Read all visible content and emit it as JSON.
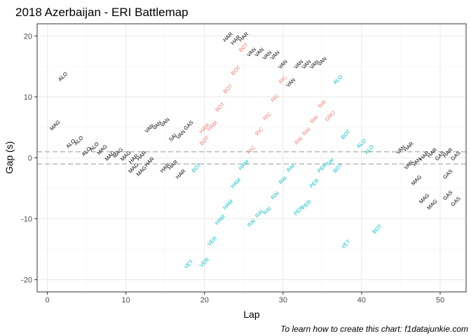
{
  "chart_data": {
    "type": "scatter",
    "title": "2018 Azerbaijan - ERI Battlemap",
    "xlabel": "Lap",
    "ylabel": "Gap (s)",
    "caption": "To learn how to create this chart: f1datajunkie.com",
    "xlim": [
      -1.3,
      53.3
    ],
    "ylim": [
      -22,
      22
    ],
    "x_ticks": [
      0,
      10,
      20,
      30,
      40,
      50
    ],
    "y_ticks": [
      -20,
      -10,
      0,
      10,
      20
    ],
    "reference_lines_y": [
      1,
      -1
    ],
    "grid": true,
    "colors": {
      "ahead": "#F8766D",
      "behind": "#00BFC4",
      "other": "#000000",
      "refline": "#b3b3b3"
    },
    "series": [
      {
        "name": "ahead",
        "points": [
          {
            "x": 20,
            "y": 2.8,
            "label": "BOT"
          },
          {
            "x": 20,
            "y": 4.8,
            "label": "HAM"
          },
          {
            "x": 21,
            "y": 5.2,
            "label": "HAM"
          },
          {
            "x": 22,
            "y": 8.3,
            "label": "BOT"
          },
          {
            "x": 23,
            "y": 11.3,
            "label": "BOT"
          },
          {
            "x": 24,
            "y": 14.3,
            "label": "BOT"
          },
          {
            "x": 25,
            "y": 18.1,
            "label": "BOT"
          },
          {
            "x": 26,
            "y": 1.3,
            "label": "RIC"
          },
          {
            "x": 27,
            "y": 4.3,
            "label": "RIC"
          },
          {
            "x": 28,
            "y": 6.8,
            "label": "RIC"
          },
          {
            "x": 29,
            "y": 9.8,
            "label": "RIC"
          },
          {
            "x": 30,
            "y": 12.8,
            "label": "RIC"
          },
          {
            "x": 32,
            "y": 2.8,
            "label": "RAI"
          },
          {
            "x": 33,
            "y": 4.3,
            "label": "RAI"
          },
          {
            "x": 34,
            "y": 6.3,
            "label": "RAI"
          },
          {
            "x": 35,
            "y": 8.8,
            "label": "RAI"
          },
          {
            "x": 36,
            "y": 6.8,
            "label": "GRO"
          }
        ]
      },
      {
        "name": "behind",
        "points": [
          {
            "x": 18,
            "y": -17.5,
            "label": "VET"
          },
          {
            "x": 20,
            "y": -17.2,
            "label": "VER"
          },
          {
            "x": 21,
            "y": -13.7,
            "label": "VER"
          },
          {
            "x": 22,
            "y": -10.2,
            "label": "HAM"
          },
          {
            "x": 23,
            "y": -7.7,
            "label": "HAM"
          },
          {
            "x": 24,
            "y": -4.2,
            "label": "HAM"
          },
          {
            "x": 25,
            "y": -1.2,
            "label": "HAM"
          },
          {
            "x": 19,
            "y": -1.7,
            "label": "BOT"
          },
          {
            "x": 26,
            "y": -10.7,
            "label": "RAI"
          },
          {
            "x": 27,
            "y": -9.2,
            "label": "RAI"
          },
          {
            "x": 28,
            "y": -8.7,
            "label": "RAI"
          },
          {
            "x": 29,
            "y": -6.2,
            "label": "RAI"
          },
          {
            "x": 30,
            "y": -3.7,
            "label": "RAI"
          },
          {
            "x": 31,
            "y": -1.7,
            "label": "RAI"
          },
          {
            "x": 32,
            "y": -8.7,
            "label": "PER"
          },
          {
            "x": 33,
            "y": -7.7,
            "label": "PER"
          },
          {
            "x": 34,
            "y": -4.2,
            "label": "PER"
          },
          {
            "x": 35,
            "y": -1.7,
            "label": "PER"
          },
          {
            "x": 36,
            "y": -0.7,
            "label": "SAI"
          },
          {
            "x": 37,
            "y": -1.7,
            "label": "BOT"
          },
          {
            "x": 38,
            "y": 3.8,
            "label": "BOT"
          },
          {
            "x": 37,
            "y": 12.8,
            "label": "ALO"
          },
          {
            "x": 40,
            "y": 2.3,
            "label": "ALO"
          },
          {
            "x": 41,
            "y": 1.3,
            "label": "ALO"
          },
          {
            "x": 38,
            "y": -14.2,
            "label": "VET"
          },
          {
            "x": 42,
            "y": -11.7,
            "label": "BOT"
          }
        ]
      },
      {
        "name": "other",
        "points": [
          {
            "x": 2,
            "y": 13.3,
            "label": "ALO"
          },
          {
            "x": 1,
            "y": 5.3,
            "label": "MAG"
          },
          {
            "x": 3,
            "y": 2.3,
            "label": "ALO"
          },
          {
            "x": 4,
            "y": 2.8,
            "label": "ALO"
          },
          {
            "x": 5,
            "y": 1.0,
            "label": "ALO"
          },
          {
            "x": 6,
            "y": 1.8,
            "label": "ALO"
          },
          {
            "x": 7,
            "y": 1.3,
            "label": "MAG"
          },
          {
            "x": 8,
            "y": 0.3,
            "label": "MAG"
          },
          {
            "x": 9,
            "y": 0.8,
            "label": "MAG"
          },
          {
            "x": 10,
            "y": 0.3,
            "label": "MAG"
          },
          {
            "x": 11,
            "y": -0.2,
            "label": "HAR"
          },
          {
            "x": 12,
            "y": 0.3,
            "label": "HAR"
          },
          {
            "x": 11,
            "y": -1.7,
            "label": "MAG"
          },
          {
            "x": 12,
            "y": -2.2,
            "label": "MAG"
          },
          {
            "x": 13,
            "y": -0.7,
            "label": "HAR"
          },
          {
            "x": 15,
            "y": -1.7,
            "label": "HAR"
          },
          {
            "x": 16,
            "y": -1.2,
            "label": "HAR"
          },
          {
            "x": 17,
            "y": -2.7,
            "label": "HAR"
          },
          {
            "x": 13,
            "y": 4.8,
            "label": "VAN"
          },
          {
            "x": 14,
            "y": 5.3,
            "label": "VAN"
          },
          {
            "x": 15,
            "y": 5.8,
            "label": "VAN"
          },
          {
            "x": 16,
            "y": 3.3,
            "label": "SAI"
          },
          {
            "x": 17,
            "y": 3.8,
            "label": "VAN"
          },
          {
            "x": 18,
            "y": 5.3,
            "label": "GAS"
          },
          {
            "x": 23,
            "y": 19.8,
            "label": "HAR"
          },
          {
            "x": 24,
            "y": 19.3,
            "label": "HAR"
          },
          {
            "x": 25,
            "y": 19.8,
            "label": "HAR"
          },
          {
            "x": 26,
            "y": 17.3,
            "label": "VAN"
          },
          {
            "x": 27,
            "y": 17.3,
            "label": "VAN"
          },
          {
            "x": 28,
            "y": 16.8,
            "label": "VAN"
          },
          {
            "x": 29,
            "y": 16.8,
            "label": "VAN"
          },
          {
            "x": 30,
            "y": 15.3,
            "label": "VAN"
          },
          {
            "x": 31,
            "y": 12.3,
            "label": "VAN"
          },
          {
            "x": 32,
            "y": 15.3,
            "label": "VAN"
          },
          {
            "x": 33,
            "y": 15.3,
            "label": "VAN"
          },
          {
            "x": 34,
            "y": 15.3,
            "label": "VAN"
          },
          {
            "x": 35,
            "y": 15.8,
            "label": "VAN"
          },
          {
            "x": 45,
            "y": 1.3,
            "label": "VAN"
          },
          {
            "x": 46,
            "y": 1.8,
            "label": "HAR"
          },
          {
            "x": 46,
            "y": -1.2,
            "label": "VAN"
          },
          {
            "x": 47,
            "y": -0.7,
            "label": "VAN"
          },
          {
            "x": 48,
            "y": 0.3,
            "label": "HAR"
          },
          {
            "x": 49,
            "y": 0.8,
            "label": "HAR"
          },
          {
            "x": 50,
            "y": 0.3,
            "label": "GAS"
          },
          {
            "x": 51,
            "y": 0.8,
            "label": "HAR"
          },
          {
            "x": 52,
            "y": 0.3,
            "label": "GAS"
          },
          {
            "x": 51,
            "y": -2.7,
            "label": "GAS"
          },
          {
            "x": 51,
            "y": -6.2,
            "label": "GAS"
          },
          {
            "x": 48,
            "y": -6.7,
            "label": "MAG"
          },
          {
            "x": 49,
            "y": -7.7,
            "label": "MAG"
          },
          {
            "x": 52,
            "y": -7.2,
            "label": "GAS"
          },
          {
            "x": 47,
            "y": -3.7,
            "label": "MAG"
          }
        ]
      }
    ]
  }
}
